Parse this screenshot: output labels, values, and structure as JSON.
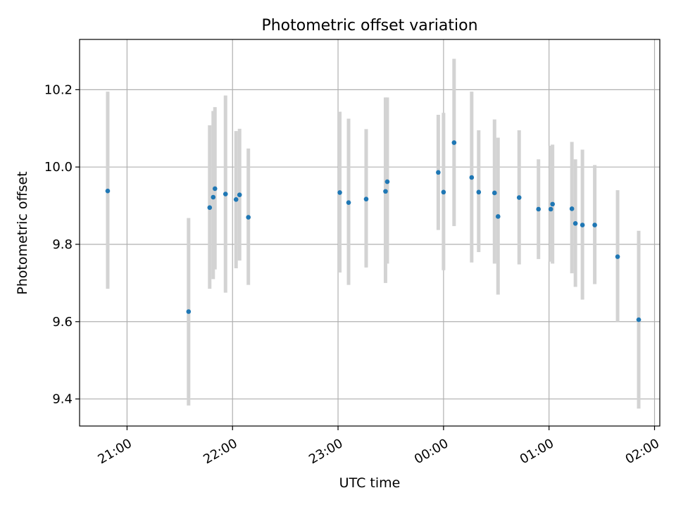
{
  "chart_data": {
    "type": "scatter",
    "title": "Photometric offset variation",
    "xlabel": "UTC time",
    "ylabel": "Photometric offset",
    "grid": true,
    "colors": {
      "points": "#1f77b4",
      "errorbars": "#d3d3d3",
      "grid": "#b0b0b0",
      "axes": "#000000"
    },
    "xlim": [
      "20:33",
      "02:03"
    ],
    "ylim": [
      9.33,
      10.33
    ],
    "x_ticks": [
      "21:00",
      "22:00",
      "23:00",
      "00:00",
      "01:00",
      "02:00"
    ],
    "y_ticks": [
      "9.4",
      "9.6",
      "9.8",
      "10.0",
      "10.2"
    ],
    "x": [
      "20:49",
      "21:35",
      "21:47",
      "21:49",
      "21:50",
      "21:56",
      "22:02",
      "22:04",
      "22:09",
      "23:01",
      "23:06",
      "23:16",
      "23:27",
      "23:28",
      "23:57",
      "24:00",
      "24:06",
      "24:16",
      "24:20",
      "24:29",
      "24:31",
      "24:43",
      "24:54",
      "25:01",
      "25:02",
      "25:13",
      "25:15",
      "25:19",
      "25:26",
      "25:39",
      "25:51"
    ],
    "y": [
      9.938,
      9.626,
      9.895,
      9.922,
      9.944,
      9.93,
      9.916,
      9.928,
      9.87,
      9.934,
      9.908,
      9.917,
      9.937,
      9.962,
      9.986,
      9.935,
      10.063,
      9.973,
      9.935,
      9.933,
      9.872,
      9.921,
      9.891,
      9.891,
      9.904,
      9.892,
      9.854,
      9.85,
      9.85,
      9.768,
      9.605
    ],
    "y_lower": [
      9.685,
      9.383,
      9.685,
      9.71,
      9.735,
      9.675,
      9.738,
      9.758,
      9.695,
      9.727,
      9.695,
      9.74,
      9.7,
      9.75,
      9.837,
      9.733,
      9.847,
      9.753,
      9.78,
      9.75,
      9.67,
      9.748,
      9.762,
      9.755,
      9.75,
      9.725,
      9.69,
      9.657,
      9.697,
      9.6,
      9.375
    ],
    "y_upper": [
      10.195,
      9.868,
      10.108,
      10.145,
      10.155,
      10.185,
      10.093,
      10.099,
      10.048,
      10.143,
      10.125,
      10.098,
      10.18,
      10.18,
      10.135,
      10.14,
      10.28,
      10.195,
      10.095,
      10.123,
      10.076,
      10.095,
      10.02,
      10.055,
      10.058,
      10.065,
      10.02,
      10.045,
      10.005,
      9.94,
      9.835
    ]
  }
}
